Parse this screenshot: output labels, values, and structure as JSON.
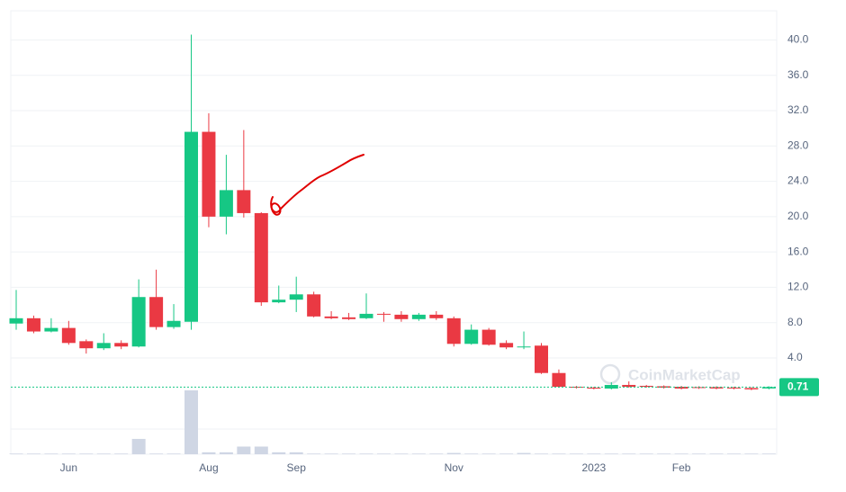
{
  "chart_data": {
    "type": "candlestick",
    "categories": [
      null,
      null,
      null,
      "Jun",
      null,
      null,
      null,
      null,
      null,
      null,
      null,
      "Aug",
      null,
      null,
      null,
      null,
      "Sep",
      null,
      null,
      null,
      null,
      null,
      null,
      null,
      null,
      "Nov",
      null,
      null,
      null,
      null,
      null,
      null,
      null,
      "2023",
      null,
      null,
      null,
      null,
      "Feb",
      null,
      null,
      null,
      null,
      null
    ],
    "open": [
      7.9,
      8.5,
      7.0,
      7.4,
      5.9,
      5.1,
      5.7,
      5.3,
      10.9,
      7.5,
      8.1,
      29.6,
      20.0,
      23.0,
      20.4,
      10.3,
      10.6,
      11.2,
      8.7,
      8.6,
      8.5,
      9.0,
      8.9,
      8.4,
      8.9,
      8.5,
      5.6,
      7.2,
      5.7,
      5.2,
      5.4,
      2.3,
      0.74,
      0.64,
      0.54,
      0.95,
      0.85,
      0.8,
      0.74,
      0.7,
      0.7,
      0.65,
      0.6,
      0.55
    ],
    "high": [
      11.7,
      8.8,
      8.5,
      8.2,
      6.1,
      6.8,
      6.0,
      12.9,
      14.0,
      10.1,
      40.6,
      31.7,
      27.0,
      29.8,
      20.5,
      12.2,
      13.2,
      11.5,
      9.3,
      9.1,
      11.3,
      9.2,
      9.3,
      9.1,
      9.3,
      8.7,
      7.8,
      7.4,
      6.0,
      7.0,
      5.7,
      2.7,
      0.84,
      0.74,
      1.25,
      1.35,
      0.95,
      0.9,
      0.84,
      0.8,
      0.8,
      0.75,
      0.7,
      0.8
    ],
    "low": [
      7.2,
      6.8,
      6.9,
      5.5,
      4.5,
      4.9,
      5.0,
      5.2,
      7.2,
      7.3,
      7.2,
      18.8,
      18.0,
      19.9,
      9.9,
      10.2,
      9.2,
      8.6,
      8.4,
      8.3,
      8.4,
      8.1,
      8.1,
      8.2,
      8.3,
      5.3,
      5.5,
      5.4,
      5.0,
      5.0,
      2.2,
      0.64,
      0.54,
      0.44,
      0.44,
      0.64,
      0.64,
      0.54,
      0.44,
      0.5,
      0.45,
      0.45,
      0.35,
      0.45
    ],
    "close": [
      8.5,
      7.0,
      7.4,
      5.7,
      5.1,
      5.7,
      5.3,
      10.9,
      7.5,
      8.2,
      29.6,
      20.0,
      23.0,
      20.4,
      10.3,
      10.6,
      11.2,
      8.7,
      8.5,
      8.4,
      9.0,
      8.9,
      8.4,
      8.9,
      8.5,
      5.6,
      7.2,
      5.5,
      5.2,
      5.3,
      2.3,
      0.74,
      0.64,
      0.54,
      0.95,
      0.74,
      0.74,
      0.64,
      0.54,
      0.6,
      0.55,
      0.55,
      0.45,
      0.71
    ],
    "volume": [
      1,
      1,
      1,
      1,
      1,
      1,
      1,
      24,
      1,
      1,
      100,
      3,
      3,
      12,
      12,
      3,
      3,
      1,
      1,
      1,
      1,
      1,
      1,
      1,
      1,
      2,
      1,
      1,
      1,
      2,
      1,
      1,
      1,
      1,
      1,
      1,
      1,
      1,
      1,
      1,
      1,
      1,
      1,
      1
    ],
    "up_color": "#16c784",
    "down_color": "#ea3943",
    "volume_color": "#cfd6e4",
    "ylim": [
      0,
      43.3
    ],
    "yticks": [
      {
        "value": 4,
        "label": "4.0"
      },
      {
        "value": 8,
        "label": "8.0"
      },
      {
        "value": 12,
        "label": "12.0"
      },
      {
        "value": 16,
        "label": "16.0"
      },
      {
        "value": 20,
        "label": "20.0"
      },
      {
        "value": 24,
        "label": "24.0"
      },
      {
        "value": 28,
        "label": "28.0"
      },
      {
        "value": 32,
        "label": "32.0"
      },
      {
        "value": 36,
        "label": "36.0"
      },
      {
        "value": 40,
        "label": "40.0"
      }
    ],
    "grid": true,
    "last_price": 0.71,
    "watermark": "CoinMarketCap"
  }
}
